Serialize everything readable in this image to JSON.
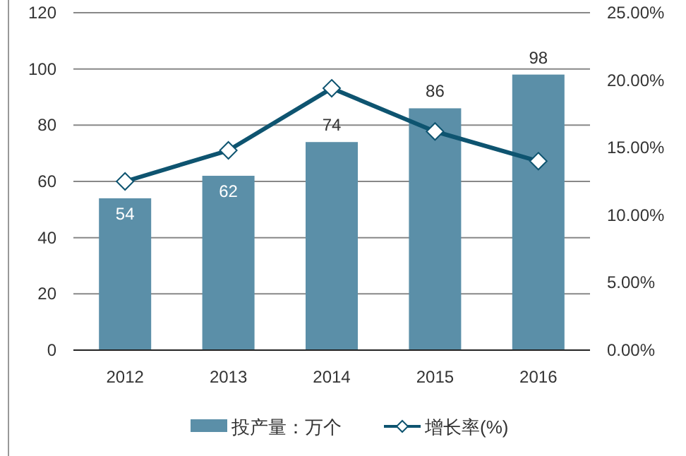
{
  "chart_data": {
    "type": "bar",
    "categories": [
      "2012",
      "2013",
      "2014",
      "2015",
      "2016"
    ],
    "series": [
      {
        "name": "投产量：万个",
        "color": "#5b8fa8",
        "values": [
          54,
          62,
          74,
          86,
          98
        ],
        "data_labels": true
      },
      {
        "name": "增长率(%)",
        "type": "line",
        "axis": "y2",
        "color": "#0e5470",
        "marker": "diamond",
        "values": [
          12.5,
          14.8,
          19.4,
          16.2,
          14.0
        ]
      }
    ],
    "ylim": [
      0,
      120
    ],
    "yticks": [
      0,
      20,
      40,
      60,
      80,
      100,
      120
    ],
    "y2lim": [
      0,
      25
    ],
    "y2ticks": [
      {
        "value": 0,
        "label": "0.00%"
      },
      {
        "value": 5,
        "label": "5.00%"
      },
      {
        "value": 10,
        "label": "10.00%"
      },
      {
        "value": 15,
        "label": "15.00%"
      },
      {
        "value": 20,
        "label": "20.00%"
      },
      {
        "value": 25,
        "label": "25.00%"
      }
    ],
    "grid": "y",
    "legend": "bottom"
  }
}
